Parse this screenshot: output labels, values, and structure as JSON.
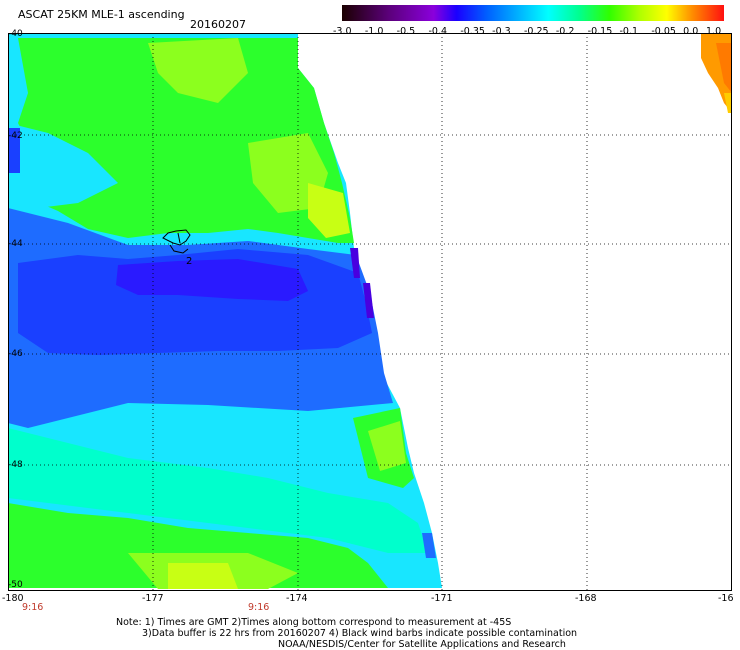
{
  "header": {
    "title": "ASCAT 25KM MLE-1 ascending",
    "date": "20160207"
  },
  "colorbar": {
    "labels": [
      "-3.0",
      "-1.0",
      "-0.5",
      "-0.4",
      "-0.35",
      "-0.3",
      "-0.25",
      "-0.2",
      "-0.15",
      "-0.1",
      "-0.05",
      "0.0",
      "1.0"
    ],
    "colors": [
      "#1a0000",
      "#5a0078",
      "#8a00dc",
      "#1a00ff",
      "#0060ff",
      "#00b0ff",
      "#00ffff",
      "#00ff90",
      "#30ff00",
      "#b0ff00",
      "#ffff00",
      "#ff8800",
      "#ff1010"
    ]
  },
  "map": {
    "x_ticks": [
      "-180",
      "-177",
      "-174",
      "-171",
      "-168",
      "-16"
    ],
    "y_ticks": [
      "-40",
      "-42",
      "-44",
      "-46",
      "-48",
      "-50"
    ],
    "time_labels": [
      "9:16",
      "9:16"
    ],
    "storm_marker": "2",
    "swath_colors": {
      "dark_blue": "#2a1aff",
      "blue": "#1a40ff",
      "mid_blue": "#1e6cff",
      "cyan": "#18e6ff",
      "aqua": "#00ffcc",
      "green": "#2cff2c",
      "lime": "#8cff1e",
      "yellow_green": "#c8ff14",
      "purple": "#4800e0",
      "orange": "#ff9a00",
      "dark_orange": "#ff7a00"
    }
  },
  "footer": {
    "note1": "Note: 1) Times are GMT 2)Times along bottom correspond to measurement at -45S",
    "note2": "3)Data buffer is 22 hrs from 20160207 4) Black wind barbs indicate possible contamination",
    "note3": "NOAA/NESDIS/Center for Satellite Applications and Research"
  }
}
